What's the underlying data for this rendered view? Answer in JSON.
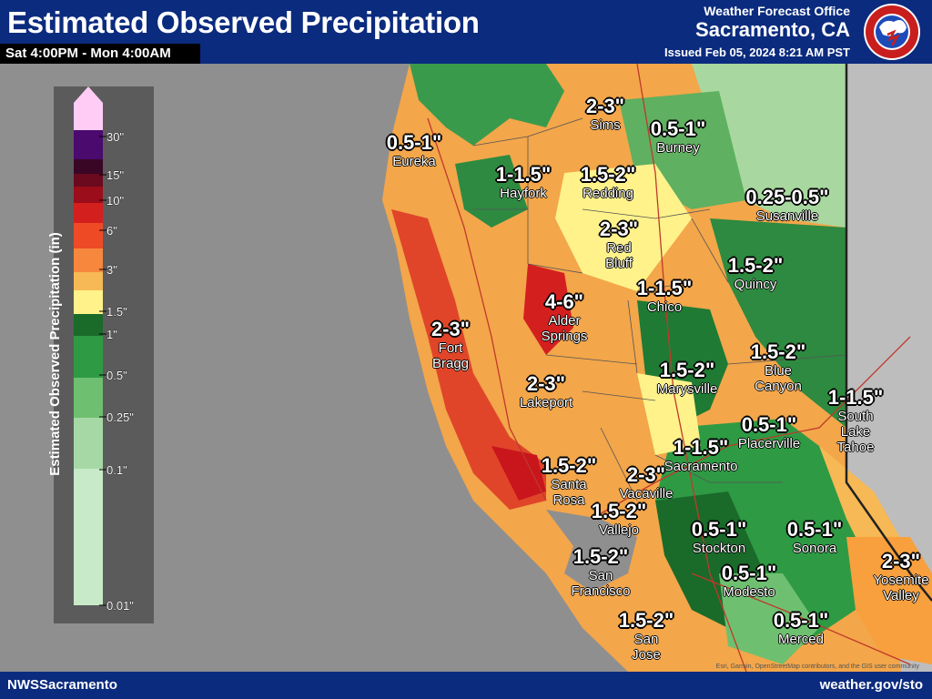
{
  "header": {
    "title": "Estimated Observed Precipitation",
    "period": "Sat 4:00PM - Mon 4:00AM",
    "office_line1": "Weather Forecast Office",
    "office_line2": "Sacramento, CA",
    "issued": "Issued Feb 05, 2024 8:21 AM PST",
    "logo_text": "NATIONAL WEATHER SERVICE"
  },
  "legend": {
    "title": "Estimated Observed Precipitation (in)",
    "ticks": [
      "30\"",
      "15\"",
      "10\"",
      "6\"",
      "3\"",
      "1.5\"",
      "1\"",
      "0.5\"",
      "0.25\"",
      "0.1\"",
      "0.01\""
    ],
    "colors": [
      "#ffccf5",
      "#4a0a6e",
      "#3a0626",
      "#6b0a1e",
      "#9b0d1a",
      "#d41f1f",
      "#ef4a26",
      "#f7873d",
      "#f7b955",
      "#fff28a",
      "#1a6a2a",
      "#2e9a44",
      "#6ec070",
      "#a6d8a6",
      "#c8eac8"
    ]
  },
  "map": {
    "labels": [
      {
        "amt": "0.5-1\"",
        "city": "Eureka"
      },
      {
        "amt": "2-3\"",
        "city": "Sims"
      },
      {
        "amt": "0.5-1\"",
        "city": "Burney"
      },
      {
        "amt": "1-1.5\"",
        "city": "Hayfork"
      },
      {
        "amt": "1.5-2\"",
        "city": "Redding"
      },
      {
        "amt": "0.25-0.5\"",
        "city": "Susanville"
      },
      {
        "amt": "2-3\"",
        "city": "Red\nBluff"
      },
      {
        "amt": "1.5-2\"",
        "city": "Quincy"
      },
      {
        "amt": "4-6\"",
        "city": "Alder\nSprings"
      },
      {
        "amt": "1-1.5\"",
        "city": "Chico"
      },
      {
        "amt": "2-3\"",
        "city": "Fort\nBragg"
      },
      {
        "amt": "1.5-2\"",
        "city": "Blue\nCanyon"
      },
      {
        "amt": "1.5-2\"",
        "city": "Marysville"
      },
      {
        "amt": "2-3\"",
        "city": "Lakeport"
      },
      {
        "amt": "1-1.5\"",
        "city": "South\nLake\nTahoe"
      },
      {
        "amt": "0.5-1\"",
        "city": "Placerville"
      },
      {
        "amt": "1-1.5\"",
        "city": "Sacramento"
      },
      {
        "amt": "1.5-2\"",
        "city": "Santa\nRosa"
      },
      {
        "amt": "2-3\"",
        "city": "Vacaville"
      },
      {
        "amt": "1.5-2\"",
        "city": "Vallejo"
      },
      {
        "amt": "0.5-1\"",
        "city": "Stockton"
      },
      {
        "amt": "0.5-1\"",
        "city": "Sonora"
      },
      {
        "amt": "1.5-2\"",
        "city": "San\nFrancisco"
      },
      {
        "amt": "0.5-1\"",
        "city": "Modesto"
      },
      {
        "amt": "2-3\"",
        "city": "Yosemite\nValley"
      },
      {
        "amt": "1.5-2\"",
        "city": "San\nJose"
      },
      {
        "amt": "0.5-1\"",
        "city": "Merced"
      }
    ],
    "attribution": "Esri, Garmin, OpenStreetMap contributors, and the GIS user community"
  },
  "footer": {
    "left": "NWSSacramento",
    "right": "weather.gov/sto"
  },
  "colors": {
    "header_bg": "#0b2b7e",
    "ocean": "#8f8f8f",
    "nevada": "#bdbdbd",
    "low_green": "#a8d8a0"
  }
}
